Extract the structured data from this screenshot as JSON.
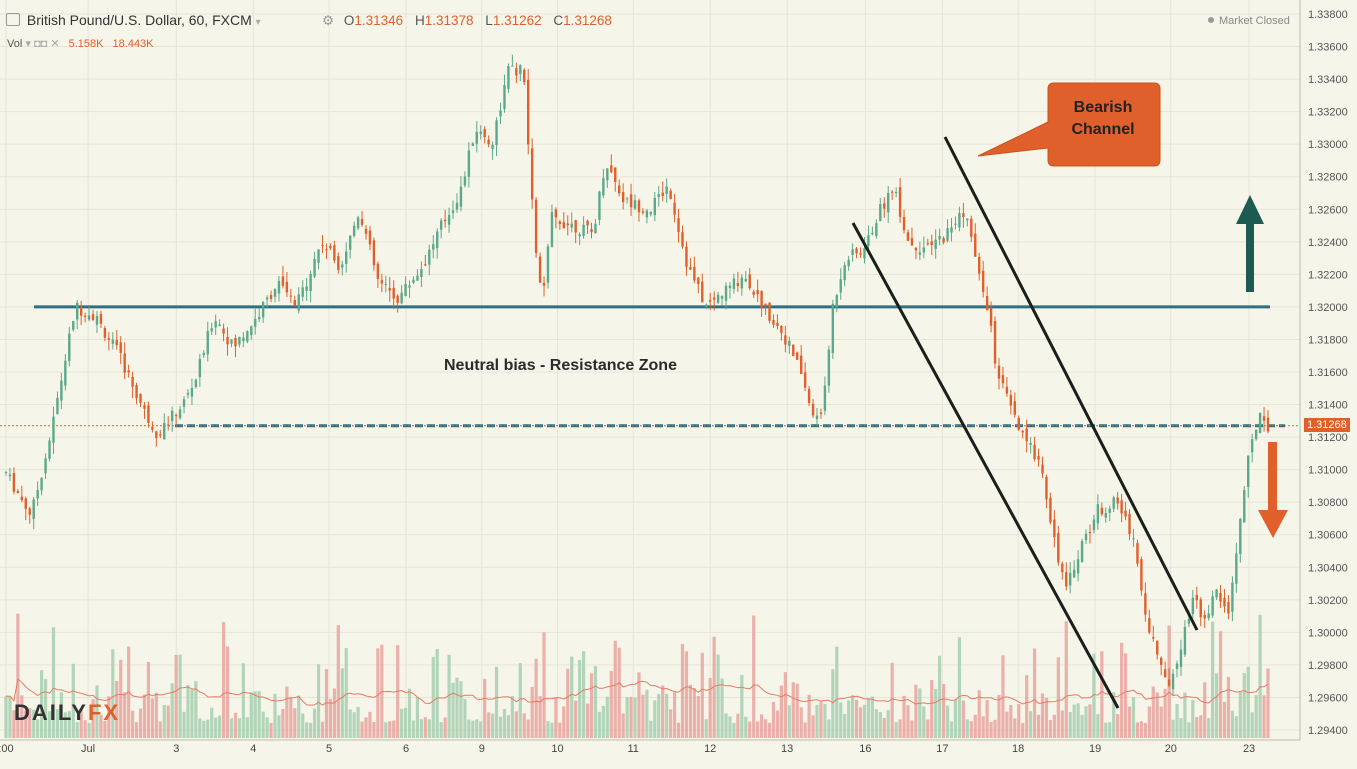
{
  "header": {
    "symbol": "British Pound/U.S. Dollar, 60, FXCM",
    "ohlc": [
      {
        "key": "O",
        "value": "1.31346"
      },
      {
        "key": "H",
        "value": "1.31378"
      },
      {
        "key": "L",
        "value": "1.31262"
      },
      {
        "key": "C",
        "value": "1.31268"
      }
    ],
    "volume_label": "Vol",
    "volume_values": [
      "5.158K",
      "18.443K"
    ],
    "status": "Market Closed"
  },
  "logo": {
    "part1": "DAILY",
    "part2": "FX"
  },
  "annotations": {
    "callout_line1": "Bearish",
    "callout_line2": "Channel",
    "zone": "Neutral bias - Resistance Zone"
  },
  "colors": {
    "up": "#5aa98a",
    "down": "#e0602b",
    "line": "#2f6f82",
    "channel": "#1a1f1c"
  },
  "chart_data": {
    "type": "candlestick",
    "price_axis_ticks": [
      "1.33800",
      "1.33600",
      "1.33400",
      "1.33200",
      "1.33000",
      "1.32800",
      "1.32600",
      "1.32400",
      "1.32200",
      "1.32000",
      "1.31800",
      "1.31600",
      "1.31400",
      "1.31200",
      "1.31000",
      "1.30800",
      "1.30600",
      "1.30400",
      "1.30200",
      "1.30000",
      "1.29800",
      "1.29600",
      "1.29400"
    ],
    "ylim": [
      1.294,
      1.338
    ],
    "current_price": "1.31268",
    "x_ticks": [
      {
        "label": ":00",
        "pos": 0.0
      },
      {
        "label": "Jul",
        "pos": 0.065
      },
      {
        "label": "3",
        "pos": 0.135
      },
      {
        "label": "4",
        "pos": 0.196
      },
      {
        "label": "5",
        "pos": 0.256
      },
      {
        "label": "6",
        "pos": 0.317
      },
      {
        "label": "9",
        "pos": 0.377
      },
      {
        "label": "10",
        "pos": 0.437
      },
      {
        "label": "11",
        "pos": 0.497
      },
      {
        "label": "12",
        "pos": 0.558
      },
      {
        "label": "13",
        "pos": 0.619
      },
      {
        "label": "16",
        "pos": 0.681
      },
      {
        "label": "17",
        "pos": 0.742
      },
      {
        "label": "18",
        "pos": 0.802
      },
      {
        "label": "19",
        "pos": 0.863
      },
      {
        "label": "20",
        "pos": 0.923
      },
      {
        "label": "23",
        "pos": 0.985
      }
    ],
    "resistance_level": 1.32,
    "support_level": 1.3127,
    "price_path": [
      [
        0.0,
        1.3098
      ],
      [
        0.02,
        1.3072
      ],
      [
        0.035,
        1.312
      ],
      [
        0.045,
        1.316
      ],
      [
        0.055,
        1.32
      ],
      [
        0.07,
        1.3195
      ],
      [
        0.09,
        1.317
      ],
      [
        0.11,
        1.3135
      ],
      [
        0.12,
        1.3122
      ],
      [
        0.14,
        1.314
      ],
      [
        0.15,
        1.3155
      ],
      [
        0.165,
        1.3195
      ],
      [
        0.18,
        1.3175
      ],
      [
        0.2,
        1.3195
      ],
      [
        0.215,
        1.3215
      ],
      [
        0.23,
        1.32
      ],
      [
        0.25,
        1.324
      ],
      [
        0.265,
        1.3225
      ],
      [
        0.28,
        1.326
      ],
      [
        0.295,
        1.3215
      ],
      [
        0.31,
        1.3205
      ],
      [
        0.33,
        1.3225
      ],
      [
        0.345,
        1.325
      ],
      [
        0.36,
        1.327
      ],
      [
        0.372,
        1.331
      ],
      [
        0.385,
        1.33
      ],
      [
        0.398,
        1.3345
      ],
      [
        0.41,
        1.3345
      ],
      [
        0.418,
        1.325
      ],
      [
        0.425,
        1.32
      ],
      [
        0.432,
        1.3255
      ],
      [
        0.45,
        1.325
      ],
      [
        0.465,
        1.3245
      ],
      [
        0.475,
        1.329
      ],
      [
        0.49,
        1.3265
      ],
      [
        0.51,
        1.326
      ],
      [
        0.525,
        1.3275
      ],
      [
        0.54,
        1.3225
      ],
      [
        0.555,
        1.32
      ],
      [
        0.57,
        1.321
      ],
      [
        0.585,
        1.322
      ],
      [
        0.6,
        1.32
      ],
      [
        0.615,
        1.3185
      ],
      [
        0.63,
        1.316
      ],
      [
        0.64,
        1.313
      ],
      [
        0.648,
        1.314
      ],
      [
        0.655,
        1.32
      ],
      [
        0.665,
        1.323
      ],
      [
        0.68,
        1.3235
      ],
      [
        0.69,
        1.3255
      ],
      [
        0.703,
        1.3275
      ],
      [
        0.715,
        1.324
      ],
      [
        0.73,
        1.3235
      ],
      [
        0.745,
        1.3245
      ],
      [
        0.76,
        1.326
      ],
      [
        0.772,
        1.3215
      ],
      [
        0.778,
        1.32
      ],
      [
        0.785,
        1.316
      ],
      [
        0.795,
        1.314
      ],
      [
        0.805,
        1.312
      ],
      [
        0.82,
        1.3105
      ],
      [
        0.83,
        1.306
      ],
      [
        0.84,
        1.3025
      ],
      [
        0.85,
        1.305
      ],
      [
        0.865,
        1.3075
      ],
      [
        0.88,
        1.308
      ],
      [
        0.893,
        1.306
      ],
      [
        0.903,
        1.301
      ],
      [
        0.913,
        1.2985
      ],
      [
        0.92,
        1.2965
      ],
      [
        0.93,
        1.299
      ],
      [
        0.94,
        1.302
      ],
      [
        0.95,
        1.301
      ],
      [
        0.96,
        1.3025
      ],
      [
        0.968,
        1.301
      ],
      [
        0.975,
        1.305
      ],
      [
        0.983,
        1.31
      ],
      [
        0.99,
        1.3125
      ],
      [
        0.995,
        1.3138
      ],
      [
        1.0,
        1.3127
      ]
    ]
  }
}
